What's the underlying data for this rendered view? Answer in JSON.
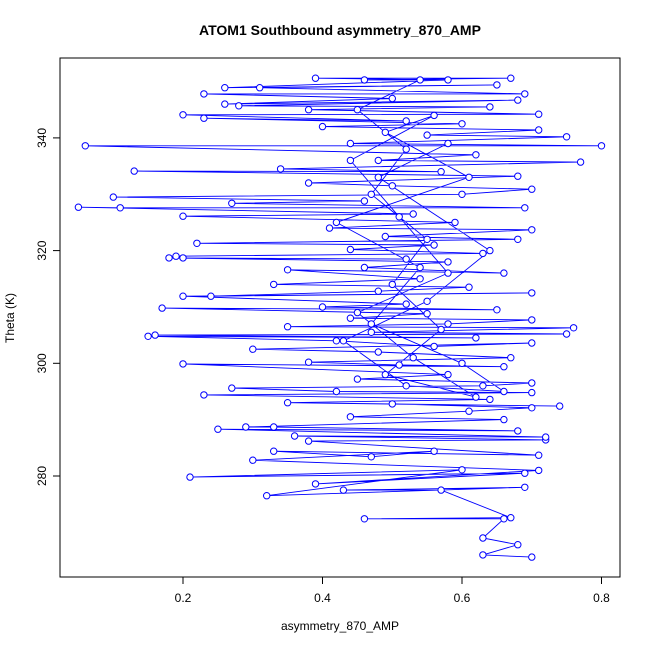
{
  "chart_data": {
    "type": "line",
    "mode": "lines+points",
    "title": "ATOM1 Southbound asymmetry_870_AMP",
    "xlabel": "asymmetry_870_AMP",
    "ylabel": "Theta (K)",
    "xlim": [
      0.04,
      0.82
    ],
    "ylim": [
      263,
      355
    ],
    "xticks": [
      0.2,
      0.4,
      0.6,
      0.8
    ],
    "xtick_labels": [
      "0.2",
      "0.4",
      "0.6",
      "0.8"
    ],
    "yticks": [
      280,
      300,
      320,
      340
    ],
    "ytick_labels": [
      "280",
      "300",
      "320",
      "340"
    ],
    "grid": false,
    "color": "#0000ff",
    "points": [
      [
        0.7,
        265.6
      ],
      [
        0.63,
        266.0
      ],
      [
        0.68,
        267.8
      ],
      [
        0.63,
        269.0
      ],
      [
        0.66,
        272.4
      ],
      [
        0.46,
        272.4
      ],
      [
        0.67,
        272.6
      ],
      [
        0.57,
        277.5
      ],
      [
        0.43,
        277.5
      ],
      [
        0.69,
        278.0
      ],
      [
        0.32,
        276.5
      ],
      [
        0.6,
        281.1
      ],
      [
        0.21,
        279.8
      ],
      [
        0.69,
        280.5
      ],
      [
        0.39,
        278.6
      ],
      [
        0.71,
        281.0
      ],
      [
        0.3,
        282.8
      ],
      [
        0.56,
        284.4
      ],
      [
        0.47,
        283.4
      ],
      [
        0.33,
        284.4
      ],
      [
        0.71,
        283.7
      ],
      [
        0.38,
        286.2
      ],
      [
        0.72,
        286.4
      ],
      [
        0.36,
        287.1
      ],
      [
        0.72,
        286.9
      ],
      [
        0.25,
        288.3
      ],
      [
        0.68,
        288.0
      ],
      [
        0.33,
        288.7
      ],
      [
        0.29,
        288.7
      ],
      [
        0.66,
        290.0
      ],
      [
        0.44,
        290.5
      ],
      [
        0.61,
        291.5
      ],
      [
        0.7,
        292.1
      ],
      [
        0.5,
        292.8
      ],
      [
        0.74,
        292.4
      ],
      [
        0.35,
        293.0
      ],
      [
        0.64,
        293.6
      ],
      [
        0.23,
        294.4
      ],
      [
        0.7,
        294.8
      ],
      [
        0.42,
        295.0
      ],
      [
        0.27,
        295.6
      ],
      [
        0.63,
        296.0
      ],
      [
        0.7,
        296.5
      ],
      [
        0.45,
        297.2
      ],
      [
        0.58,
        298.0
      ],
      [
        0.2,
        299.9
      ],
      [
        0.66,
        299.4
      ],
      [
        0.51,
        299.7
      ],
      [
        0.38,
        300.2
      ],
      [
        0.67,
        301.0
      ],
      [
        0.48,
        302.0
      ],
      [
        0.3,
        302.5
      ],
      [
        0.7,
        303.6
      ],
      [
        0.56,
        303.0
      ],
      [
        0.42,
        304.0
      ],
      [
        0.15,
        304.8
      ],
      [
        0.62,
        304.5
      ],
      [
        0.16,
        305.0
      ],
      [
        0.75,
        305.2
      ],
      [
        0.47,
        305.5
      ],
      [
        0.76,
        306.3
      ],
      [
        0.35,
        306.5
      ],
      [
        0.58,
        307.0
      ],
      [
        0.7,
        307.7
      ],
      [
        0.44,
        308.0
      ],
      [
        0.55,
        308.8
      ],
      [
        0.17,
        309.8
      ],
      [
        0.65,
        309.5
      ],
      [
        0.4,
        310.0
      ],
      [
        0.52,
        310.5
      ],
      [
        0.2,
        311.9
      ],
      [
        0.7,
        312.5
      ],
      [
        0.24,
        311.9
      ],
      [
        0.48,
        312.8
      ],
      [
        0.61,
        313.5
      ],
      [
        0.33,
        314.0
      ],
      [
        0.54,
        315.0
      ],
      [
        0.35,
        316.6
      ],
      [
        0.66,
        316.0
      ],
      [
        0.46,
        317.0
      ],
      [
        0.58,
        318.0
      ],
      [
        0.18,
        318.7
      ],
      [
        0.52,
        318.5
      ],
      [
        0.2,
        318.7
      ],
      [
        0.19,
        319.0
      ],
      [
        0.63,
        319.5
      ],
      [
        0.44,
        320.2
      ],
      [
        0.56,
        321.0
      ],
      [
        0.22,
        321.3
      ],
      [
        0.68,
        322.0
      ],
      [
        0.49,
        322.5
      ],
      [
        0.7,
        323.7
      ],
      [
        0.41,
        324.0
      ],
      [
        0.59,
        325.0
      ],
      [
        0.2,
        326.1
      ],
      [
        0.53,
        326.5
      ],
      [
        0.05,
        327.7
      ],
      [
        0.11,
        327.6
      ],
      [
        0.69,
        327.6
      ],
      [
        0.27,
        328.4
      ],
      [
        0.46,
        328.8
      ],
      [
        0.1,
        329.5
      ],
      [
        0.6,
        330.0
      ],
      [
        0.7,
        330.9
      ],
      [
        0.5,
        331.5
      ],
      [
        0.38,
        332.0
      ],
      [
        0.68,
        333.2
      ],
      [
        0.13,
        334.1
      ],
      [
        0.57,
        334.0
      ],
      [
        0.34,
        334.5
      ],
      [
        0.77,
        335.7
      ],
      [
        0.48,
        336.0
      ],
      [
        0.62,
        337.0
      ],
      [
        0.06,
        338.6
      ],
      [
        0.8,
        338.6
      ],
      [
        0.44,
        339.0
      ],
      [
        0.75,
        340.2
      ],
      [
        0.55,
        340.5
      ],
      [
        0.71,
        341.4
      ],
      [
        0.4,
        342.0
      ],
      [
        0.6,
        342.5
      ],
      [
        0.23,
        343.5
      ],
      [
        0.52,
        343.0
      ],
      [
        0.2,
        344.1
      ],
      [
        0.71,
        344.2
      ],
      [
        0.38,
        345.0
      ],
      [
        0.64,
        345.5
      ],
      [
        0.28,
        345.7
      ],
      [
        0.68,
        346.7
      ],
      [
        0.26,
        346.0
      ],
      [
        0.5,
        347.0
      ],
      [
        0.23,
        347.8
      ],
      [
        0.69,
        347.8
      ],
      [
        0.31,
        348.9
      ],
      [
        0.65,
        349.4
      ],
      [
        0.26,
        348.9
      ],
      [
        0.58,
        350.3
      ],
      [
        0.39,
        350.6
      ],
      [
        0.67,
        350.6
      ],
      [
        0.46,
        350.3
      ],
      [
        0.54,
        350.3
      ],
      [
        0.45,
        345.0
      ],
      [
        0.52,
        338.0
      ],
      [
        0.47,
        330.0
      ],
      [
        0.55,
        322.0
      ],
      [
        0.5,
        314.0
      ],
      [
        0.57,
        306.0
      ],
      [
        0.49,
        298.0
      ],
      [
        0.62,
        294.0
      ],
      [
        0.53,
        301.0
      ],
      [
        0.45,
        309.0
      ],
      [
        0.58,
        316.0
      ],
      [
        0.51,
        326.0
      ],
      [
        0.44,
        336.0
      ],
      [
        0.56,
        344.0
      ],
      [
        0.49,
        341.0
      ],
      [
        0.61,
        333.0
      ],
      [
        0.42,
        325.0
      ],
      [
        0.54,
        317.0
      ],
      [
        0.47,
        307.0
      ],
      [
        0.6,
        300.0
      ],
      [
        0.66,
        295.0
      ],
      [
        0.52,
        296.0
      ],
      [
        0.43,
        304.0
      ],
      [
        0.55,
        311.0
      ],
      [
        0.64,
        320.0
      ],
      [
        0.48,
        333.0
      ],
      [
        0.58,
        339.0
      ]
    ]
  }
}
